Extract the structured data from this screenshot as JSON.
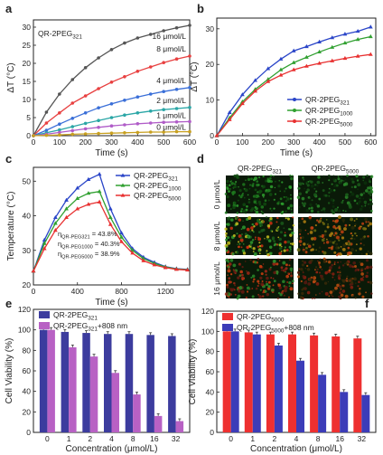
{
  "chart_data": [
    {
      "panel": "a",
      "type": "line",
      "series_label": "QR-2PEG",
      "series_label_sub": "321",
      "xlabel": "Time (s)",
      "ylabel": "ΔT (°C)",
      "xlim": [
        0,
        600
      ],
      "ylim": [
        0,
        32
      ],
      "xticks": [
        0,
        100,
        200,
        300,
        400,
        500,
        600
      ],
      "yticks": [
        0,
        5,
        10,
        15,
        20,
        25,
        30
      ],
      "x": [
        0,
        50,
        100,
        150,
        200,
        250,
        300,
        350,
        400,
        450,
        500,
        550,
        600
      ],
      "series": [
        {
          "name": "16 μmol/L",
          "color": "#555555",
          "values": [
            0,
            6.5,
            11.5,
            15.5,
            18.8,
            21.5,
            23.8,
            25.6,
            27,
            28,
            29,
            29.8,
            30.5
          ]
        },
        {
          "name": "8 μmol/L",
          "color": "#e84040",
          "values": [
            0,
            3.5,
            6.3,
            9,
            11,
            13,
            14.8,
            16.3,
            17.8,
            19,
            20.2,
            21.2,
            22
          ]
        },
        {
          "name": "4 μmol/L",
          "color": "#3a6fd8",
          "values": [
            0,
            1.5,
            3.2,
            4.8,
            6.3,
            7.7,
            8.8,
            9.8,
            10.7,
            11.5,
            12.2,
            12.8,
            13.3
          ]
        },
        {
          "name": "2 μmol/L",
          "color": "#2aa6a6",
          "values": [
            0,
            0.8,
            1.6,
            2.5,
            3.4,
            4.2,
            5,
            5.7,
            6.3,
            6.8,
            7.2,
            7.5,
            7.8
          ]
        },
        {
          "name": "1 μmol/L",
          "color": "#b05cc8",
          "values": [
            0,
            0.4,
            0.9,
            1.4,
            1.9,
            2.3,
            2.7,
            3,
            3.3,
            3.5,
            3.7,
            3.8,
            3.9
          ]
        },
        {
          "name": "0 μmol/L",
          "color": "#c8a020",
          "values": [
            0,
            0.1,
            0.2,
            0.4,
            0.5,
            0.6,
            0.7,
            0.8,
            0.9,
            1,
            1,
            1.1,
            1.1
          ]
        }
      ]
    },
    {
      "panel": "b",
      "type": "line",
      "xlabel": "Time (s)",
      "ylabel": "ΔT (°C)",
      "xlim": [
        0,
        620
      ],
      "ylim": [
        0,
        33
      ],
      "xticks": [
        0,
        100,
        200,
        300,
        400,
        500,
        600
      ],
      "yticks": [
        0,
        10,
        20,
        30
      ],
      "legend": "bottom-right",
      "x": [
        0,
        50,
        100,
        150,
        200,
        250,
        300,
        350,
        400,
        450,
        500,
        550,
        600
      ],
      "series": [
        {
          "name": "QR-2PEG",
          "sub": "321",
          "color": "#2a45c8",
          "values": [
            0,
            6.5,
            11.5,
            15.5,
            18.8,
            21.5,
            23.8,
            25,
            26.3,
            27.5,
            28.5,
            29.3,
            30.5
          ]
        },
        {
          "name": "QR-2PEG",
          "sub": "1000",
          "color": "#30a030",
          "values": [
            0,
            5,
            9.5,
            13,
            15.8,
            18.5,
            20.5,
            22,
            23.5,
            24.8,
            26,
            27,
            27.8
          ]
        },
        {
          "name": "QR-2PEG",
          "sub": "5000",
          "color": "#e83030",
          "values": [
            0,
            4.5,
            9,
            12.5,
            15.2,
            17,
            18.5,
            19.5,
            20.3,
            21,
            21.7,
            22.3,
            22.8
          ]
        }
      ]
    },
    {
      "panel": "c",
      "type": "line",
      "xlabel": "Time (s)",
      "ylabel": "Temperature (°C)",
      "xlim": [
        0,
        1420
      ],
      "ylim": [
        20,
        54
      ],
      "xticks": [
        0,
        400,
        800,
        1200
      ],
      "yticks": [
        20,
        30,
        40,
        50
      ],
      "legend": "top-right",
      "x": [
        0,
        100,
        200,
        300,
        400,
        500,
        600,
        700,
        800,
        900,
        1000,
        1100,
        1200,
        1300,
        1400
      ],
      "series": [
        {
          "name": "QR-2PEG",
          "sub": "321",
          "color": "#2a45c8",
          "values": [
            24,
            33,
            39.5,
            44.5,
            48,
            50.5,
            52,
            42,
            35,
            30.5,
            28,
            26.5,
            25.3,
            24.7,
            24.5
          ]
        },
        {
          "name": "QR-2PEG",
          "sub": "1000",
          "color": "#30a030",
          "values": [
            24,
            32,
            37.8,
            42,
            45,
            46.5,
            47,
            39.5,
            33.8,
            30,
            27.6,
            26.2,
            25.2,
            24.6,
            24.4
          ]
        },
        {
          "name": "QR-2PEG",
          "sub": "5000",
          "color": "#e83030",
          "values": [
            24,
            30.5,
            35.8,
            39.5,
            42,
            43.3,
            44,
            37.5,
            32.5,
            29.2,
            27,
            25.8,
            25,
            24.5,
            24.3
          ]
        }
      ],
      "annotations": [
        {
          "prefix": "η",
          "sub": "QR-PEG321",
          "value": "= 43.8%"
        },
        {
          "prefix": "η",
          "sub": "QR-PEG1000",
          "value": "= 40.3%"
        },
        {
          "prefix": "η",
          "sub": "QR-PEG5000",
          "value": "= 38.9%"
        }
      ]
    },
    {
      "panel": "e",
      "type": "bar",
      "xlabel": "Concentration (μmol/L)",
      "ylabel": "Cell Viability (%)",
      "ylim": [
        0,
        120
      ],
      "yticks": [
        0,
        20,
        40,
        60,
        80,
        100,
        120
      ],
      "categories": [
        "0",
        "1",
        "2",
        "4",
        "8",
        "16",
        "32"
      ],
      "legend": "top-left",
      "series": [
        {
          "name": "QR-2PEG",
          "sub": "321",
          "color": "#3c3c9e",
          "values": [
            100,
            98,
            97,
            96,
            96,
            95,
            94
          ]
        },
        {
          "name": "QR-2PEG",
          "sub": "321",
          "suffix": "+808 nm",
          "color": "#b861c4",
          "values": [
            100,
            83,
            74,
            58,
            37,
            16,
            11
          ]
        }
      ]
    },
    {
      "panel": "f",
      "type": "bar",
      "xlabel": "Concentration (μmol/L)",
      "ylabel": "Cell Viability (%)",
      "ylim": [
        0,
        120
      ],
      "yticks": [
        0,
        20,
        40,
        60,
        80,
        100,
        120
      ],
      "categories": [
        "0",
        "1",
        "2",
        "4",
        "8",
        "16",
        "32"
      ],
      "legend": "top-left",
      "series": [
        {
          "name": "QR-2PEG",
          "sub": "5000",
          "color": "#ee3030",
          "values": [
            100,
            99,
            97,
            97,
            96,
            95,
            93
          ]
        },
        {
          "name": "QR-2PEG",
          "sub": "5000",
          "suffix": "+808 nm",
          "color": "#3c3cb8",
          "values": [
            100,
            97,
            86,
            71,
            57,
            40,
            37
          ]
        }
      ]
    }
  ],
  "panel_d": {
    "label": "d",
    "col_headers": [
      {
        "name": "QR-2PEG",
        "sub": "321"
      },
      {
        "name": "QR-2PEG",
        "sub": "5000"
      }
    ],
    "row_labels": [
      "0 μmol/L",
      "8 μmol/L",
      "16 μmol/L"
    ]
  }
}
